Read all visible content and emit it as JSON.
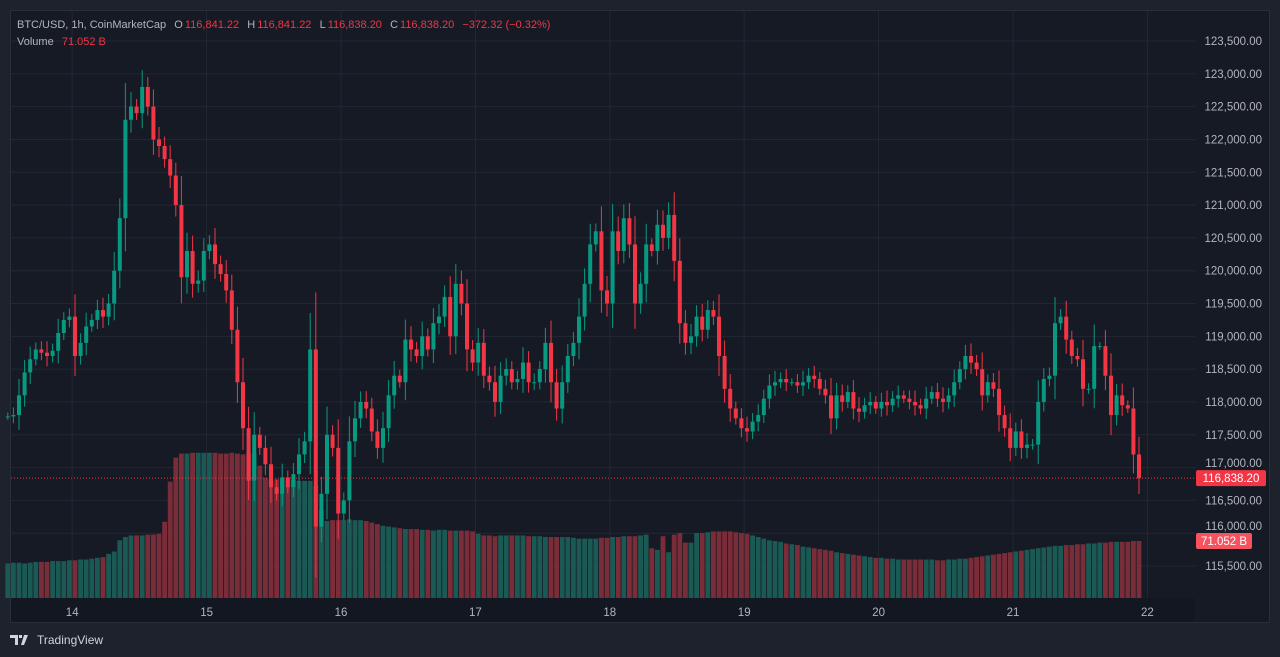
{
  "header": {
    "symbol": "BTC/USD, 1h, CoinMarketCap",
    "o_label": "O",
    "o": "116,841.22",
    "h_label": "H",
    "h": "116,841.22",
    "l_label": "L",
    "l": "116,838.20",
    "c_label": "C",
    "c": "116,838.20",
    "change": "−372.32 (−0.32%)",
    "volume_label": "Volume",
    "volume": "71.052 B"
  },
  "branding": {
    "logo_text": "TradingView"
  },
  "colors": {
    "up": "#089981",
    "down": "#f23645",
    "background": "#161a25",
    "grid": "#232733",
    "text": "#b2b5be"
  },
  "chart_data": {
    "type": "candlestick",
    "interval": "1h",
    "x_tick_labels": [
      "14",
      "15",
      "16",
      "17",
      "18",
      "19",
      "20",
      "21",
      "22"
    ],
    "y_tick_labels": [
      "115,500.00",
      "116,000.00",
      "116,500.00",
      "117,000.00",
      "117,500.00",
      "118,000.00",
      "118,500.00",
      "119,000.00",
      "119,500.00",
      "120,000.00",
      "120,500.00",
      "121,000.00",
      "121,500.00",
      "122,000.00",
      "122,500.00",
      "123,000.00",
      "123,500.00"
    ],
    "ylim": [
      115500,
      123500
    ],
    "grid": true,
    "current_price": 116838.2,
    "current_price_label": "116,838.20",
    "current_volume_label": "71.052 B",
    "close": [
      117780,
      117800,
      118100,
      118450,
      118650,
      118800,
      118750,
      118700,
      118780,
      119050,
      119250,
      119300,
      118700,
      118900,
      119150,
      119250,
      119400,
      119300,
      119500,
      120000,
      120800,
      122300,
      122500,
      122400,
      122800,
      122500,
      122000,
      121900,
      121700,
      121450,
      121000,
      119900,
      120300,
      119800,
      119850,
      120300,
      120400,
      120100,
      119950,
      119700,
      119100,
      118300,
      117600,
      116800,
      117500,
      117300,
      117050,
      116700,
      116600,
      116850,
      116700,
      116900,
      117200,
      117400,
      118800,
      116100,
      116600,
      117500,
      117300,
      116300,
      116500,
      117400,
      117750,
      118000,
      117900,
      117550,
      117300,
      117600,
      118100,
      118400,
      118300,
      118950,
      118800,
      118700,
      119000,
      118800,
      119200,
      119300,
      119600,
      119000,
      119800,
      119500,
      118800,
      118600,
      118900,
      118400,
      118300,
      118000,
      118400,
      118500,
      118300,
      118350,
      118600,
      118300,
      118300,
      118500,
      118900,
      118300,
      117900,
      118300,
      118700,
      118900,
      119300,
      119800,
      120400,
      120600,
      119700,
      119500,
      120600,
      120300,
      120800,
      120400,
      119500,
      119800,
      120400,
      120300,
      120700,
      120500,
      120850,
      120150,
      119200,
      118900,
      119000,
      119300,
      119100,
      119400,
      119300,
      118700,
      118200,
      117900,
      117750,
      117600,
      117550,
      117700,
      117800,
      118050,
      118250,
      118300,
      118350,
      118300,
      118300,
      118250,
      118300,
      118400,
      118350,
      118200,
      118100,
      117750,
      118100,
      118000,
      118150,
      117900,
      117850,
      117950,
      118000,
      117900,
      118000,
      117950,
      118050,
      118100,
      118050,
      118000,
      117950,
      117900,
      118050,
      118150,
      118050,
      118000,
      118100,
      118300,
      118500,
      118700,
      118600,
      118500,
      118100,
      118300,
      118200,
      117800,
      117600,
      117300,
      117550,
      117300,
      117350,
      117350,
      118000,
      118350,
      118400,
      119200,
      119300,
      118950,
      118700,
      118650,
      118200,
      118200,
      118850,
      118850,
      118400,
      117800,
      118100,
      117950,
      117900,
      117200,
      116838.2
    ],
    "volume_billions": [
      43,
      44,
      44,
      43,
      44,
      45,
      45,
      45,
      46,
      46,
      46,
      47,
      47,
      48,
      48,
      49,
      50,
      51,
      55,
      58,
      72,
      76,
      78,
      78,
      78,
      79,
      79,
      80,
      95,
      145,
      175,
      180,
      180,
      181,
      181,
      181,
      181,
      181,
      180,
      180,
      181,
      180,
      179,
      180,
      181,
      165,
      150,
      148,
      148,
      148,
      147,
      147,
      146,
      146,
      146,
      140,
      110,
      96,
      97,
      97,
      97,
      98,
      97,
      97,
      96,
      94,
      92,
      90,
      89,
      88,
      87,
      86,
      86,
      86,
      85,
      85,
      84,
      85,
      85,
      84,
      84,
      84,
      84,
      83,
      80,
      78,
      78,
      77,
      78,
      78,
      78,
      78,
      78,
      77,
      77,
      77,
      76,
      76,
      76,
      76,
      76,
      75,
      74,
      74,
      74,
      74,
      75,
      75,
      76,
      76,
      77,
      77,
      77,
      78,
      79,
      62,
      60,
      77,
      57,
      79,
      81,
      69,
      69,
      81,
      81,
      82,
      83,
      83,
      83,
      83,
      82,
      81,
      80,
      78,
      76,
      74,
      72,
      71,
      70,
      68,
      67,
      66,
      64,
      63,
      62,
      61,
      60,
      59,
      57,
      56,
      55,
      54,
      53,
      52,
      51,
      50,
      50,
      49,
      49,
      48,
      48,
      48,
      48,
      48,
      48,
      48,
      47,
      47,
      48,
      48,
      49,
      49,
      50,
      51,
      52,
      53,
      54,
      55,
      56,
      57,
      58,
      59,
      60,
      61,
      62,
      63,
      64,
      65,
      65,
      66,
      66,
      67,
      67,
      68,
      68,
      69,
      69,
      70,
      70,
      70,
      70,
      71,
      71.052
    ]
  }
}
